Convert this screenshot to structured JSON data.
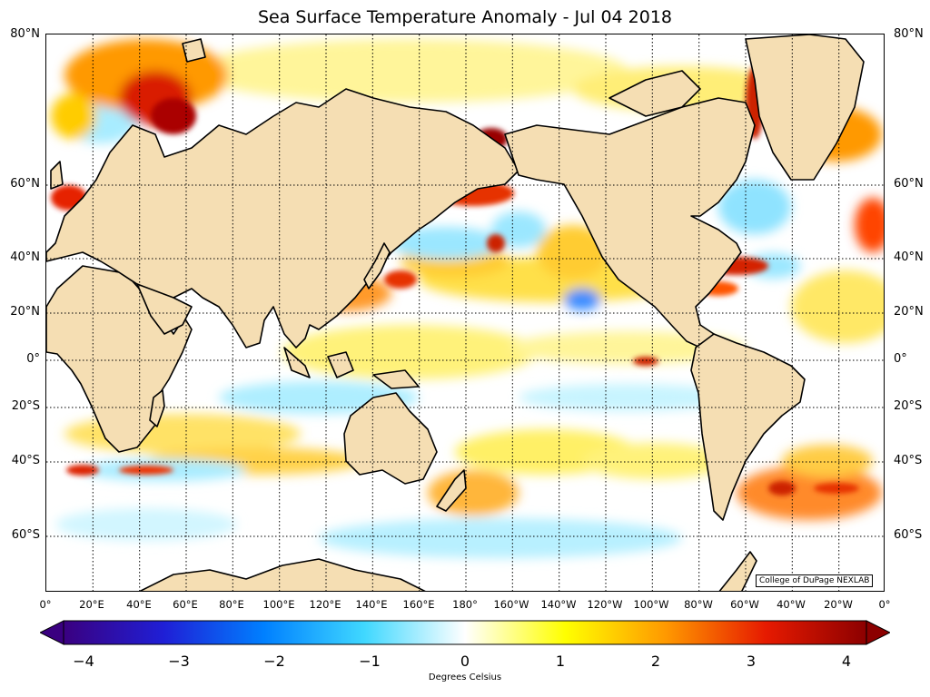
{
  "title": "Sea Surface Temperature Anomaly - Jul 04 2018",
  "credit": "College of DuPage NEXLAB",
  "colorbar_label": "Degrees Celsius",
  "lat_labels": [
    "80°N",
    "60°N",
    "40°N",
    "20°N",
    "0°",
    "20°S",
    "40°S",
    "60°S"
  ],
  "lat_values": [
    80,
    60,
    40,
    20,
    0,
    -20,
    -40,
    -60
  ],
  "lon_labels": [
    "0°",
    "20°E",
    "40°E",
    "60°E",
    "80°E",
    "100°E",
    "120°E",
    "140°E",
    "160°E",
    "180°",
    "160°W",
    "140°W",
    "120°W",
    "100°W",
    "80°W",
    "60°W",
    "40°W",
    "20°W",
    "0°"
  ],
  "colorbar_ticks": [
    "−4",
    "−3",
    "−2",
    "−1",
    "0",
    "1",
    "2",
    "3",
    "4"
  ],
  "colorbar_values": [
    -4,
    -3,
    -2,
    -1,
    0,
    1,
    2,
    3,
    4
  ],
  "colors": {
    "land": "#f5deb3",
    "ocean_neutral": "#ffffff",
    "scale": [
      "#3a0080",
      "#1f1fd6",
      "#0080ff",
      "#40d8ff",
      "#ffffff",
      "#ffff00",
      "#ff9900",
      "#e61a00",
      "#8c0000"
    ]
  },
  "map_extent": {
    "lon_min": 0,
    "lon_max": 360,
    "lat_min": -77,
    "lat_max": 80,
    "projection": "mercator"
  }
}
